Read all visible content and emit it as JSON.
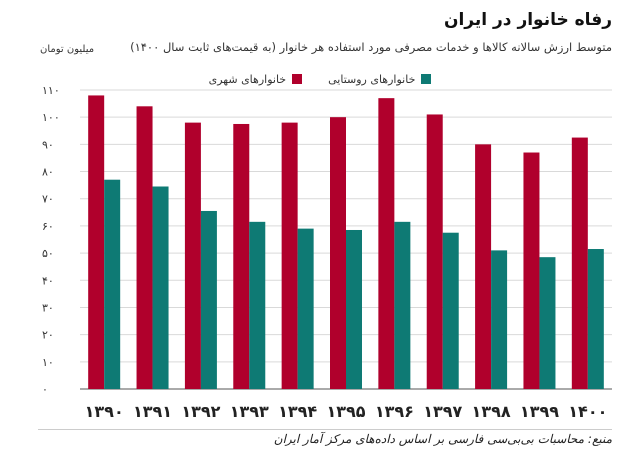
{
  "colors": {
    "urban": "#b0002c",
    "rural": "#0e7a74",
    "grid": "#d9d9d9",
    "axis": "#555555"
  },
  "chart_data": {
    "type": "bar",
    "title": "رفاه خانوار در ایران",
    "subtitle": "متوسط ارزش سالانه کالاها و خدمات مصرفی مورد استفاده هر خانوار (به قیمت‌های ثابت سال ۱۴۰۰)",
    "ylabel": "میلیون تومان",
    "xlabel": "",
    "ylim": [
      0,
      110
    ],
    "yticks": [
      0,
      10,
      20,
      30,
      40,
      50,
      60,
      70,
      80,
      90,
      100,
      110
    ],
    "ytick_labels": [
      "۰",
      "۱۰",
      "۲۰",
      "۳۰",
      "۴۰",
      "۵۰",
      "۶۰",
      "۷۰",
      "۸۰",
      "۹۰",
      "۱۰۰",
      "۱۱۰"
    ],
    "grid": true,
    "legend_position": "top-center",
    "categories": [
      "۱۳۹۰",
      "۱۳۹۱",
      "۱۳۹۲",
      "۱۳۹۳",
      "۱۳۹۴",
      "۱۳۹۵",
      "۱۳۹۶",
      "۱۳۹۷",
      "۱۳۹۸",
      "۱۳۹۹",
      "۱۴۰۰"
    ],
    "series": [
      {
        "name": "خانوارهای شهری",
        "key": "urban",
        "values": [
          108,
          104,
          98,
          97.5,
          98,
          100,
          107,
          101,
          90,
          87,
          92.5
        ]
      },
      {
        "name": "خانوارهای روستایی",
        "key": "rural",
        "values": [
          77,
          74.5,
          65.5,
          61.5,
          59,
          58.5,
          61.5,
          57.5,
          51,
          48.5,
          51.5
        ]
      }
    ]
  },
  "source": "منبع: محاسبات بی‌بی‌سی فارسی بر اساس داده‌های مرکز آمار ایران"
}
